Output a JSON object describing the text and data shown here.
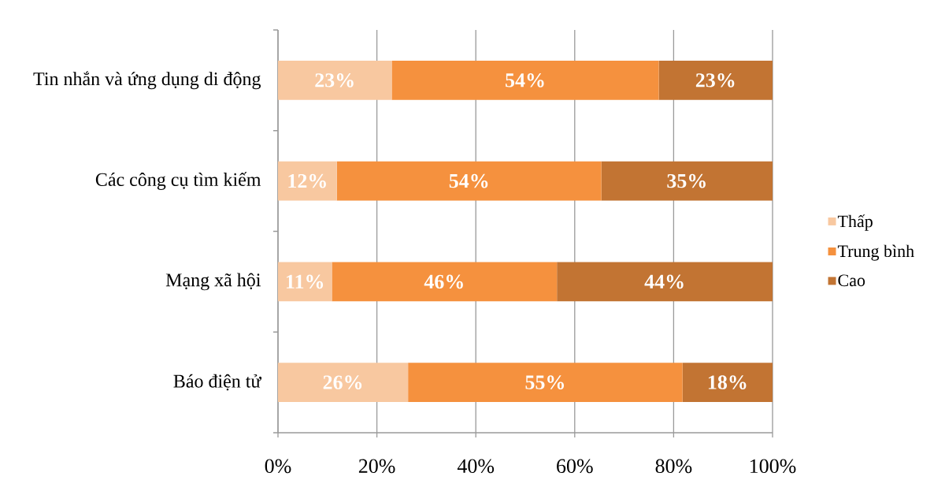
{
  "chart_data": {
    "type": "bar",
    "orientation": "horizontal",
    "stacked": true,
    "categories": [
      "Tin nhắn và ứng dụng di động",
      "Các công cụ tìm kiếm",
      "Mạng xã hội",
      "Báo điện tử"
    ],
    "series": [
      {
        "name": "Thấp",
        "color": "#f8c8a0",
        "values": [
          23,
          11.9,
          10.9,
          26.3
        ],
        "value_labels": [
          "23%",
          "12%",
          "11%",
          "26%"
        ]
      },
      {
        "name": "Trung bình",
        "color": "#f5913e",
        "values": [
          54,
          53.5,
          45.5,
          55.5
        ],
        "value_labels": [
          "54%",
          "54%",
          "46%",
          "55%"
        ]
      },
      {
        "name": "Cao",
        "color": "#c27433",
        "values": [
          23,
          34.6,
          43.6,
          18.2
        ],
        "value_labels": [
          "23%",
          "35%",
          "44%",
          "18%"
        ]
      }
    ],
    "xlim": [
      0,
      100
    ],
    "xticks": [
      {
        "value": 0,
        "label": "0%"
      },
      {
        "value": 20,
        "label": "20%"
      },
      {
        "value": 40,
        "label": "40%"
      },
      {
        "value": 60,
        "label": "60%"
      },
      {
        "value": 80,
        "label": "80%"
      },
      {
        "value": 100,
        "label": "100%"
      }
    ],
    "grid": "x",
    "legend": "right"
  }
}
